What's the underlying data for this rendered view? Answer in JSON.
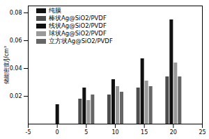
{
  "chart_data": {
    "type": "bar",
    "y_label": "储能密度/J/cm³",
    "x": [
      0,
      5,
      10,
      15,
      20
    ],
    "series": [
      {
        "name": "纯膜",
        "color": "#111111",
        "values": [
          0.014,
          null,
          null,
          null,
          null
        ]
      },
      {
        "name": "棒状Ag@SiO2/PVDF",
        "color": "#4d4d4d",
        "values": [
          null,
          0.018,
          0.021,
          0.026,
          0.034
        ]
      },
      {
        "name": "线状Ag@SiO2/PVDF",
        "color": "#111111",
        "values": [
          null,
          0.026,
          0.032,
          0.047,
          0.075
        ]
      },
      {
        "name": "球状Ag@SiO2/PVDF",
        "color": "#999999",
        "values": [
          null,
          0.017,
          0.027,
          0.031,
          0.044
        ]
      },
      {
        "name": "立方状Ag@SiO2/PVDF",
        "color": "#666666",
        "values": [
          null,
          0.021,
          0.023,
          0.027,
          0.034
        ]
      }
    ],
    "xlim": [
      -5,
      25
    ],
    "xticks": [
      -5,
      0,
      5,
      10,
      15,
      20,
      25
    ],
    "ylim": [
      0,
      0.085
    ],
    "yticks": [
      0.02,
      0.04,
      0.06,
      0.08
    ],
    "legend": "top-left"
  }
}
